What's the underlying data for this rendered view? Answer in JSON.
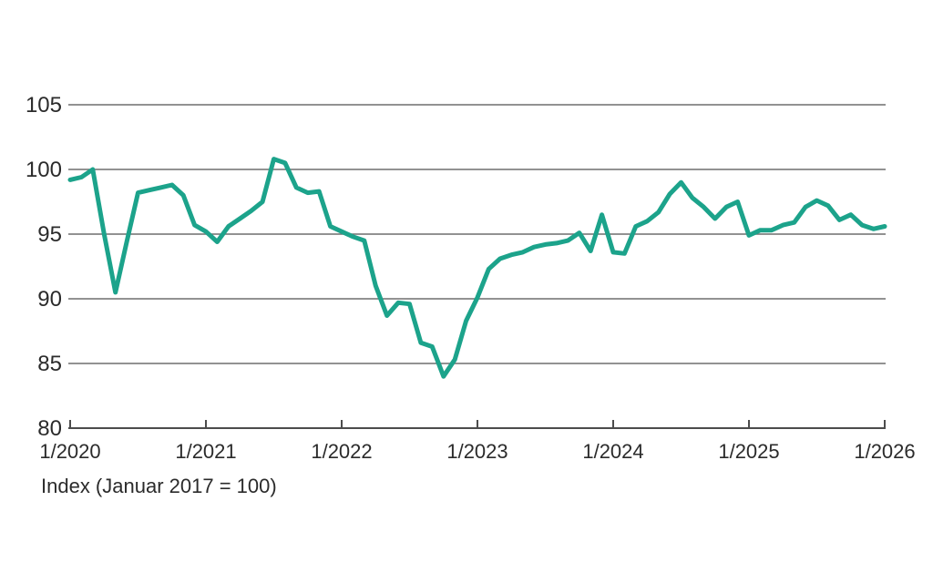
{
  "footnote": "Index (Januar 2017 = 100)",
  "chart_data": {
    "type": "line",
    "title": "",
    "xlabel": "",
    "ylabel": "Index (Januar 2017 = 100)",
    "x_start_label": "1/2020",
    "x_end_label": "1/2026",
    "x_tick_labels": [
      "1/2020",
      "1/2021",
      "1/2022",
      "1/2023",
      "1/2024",
      "1/2025",
      "1/2026"
    ],
    "y_tick_labels": [
      "105",
      "100",
      "95",
      "90",
      "85",
      "80"
    ],
    "y_ticks": [
      105,
      100,
      95,
      90,
      85,
      80
    ],
    "ylim": [
      80,
      105
    ],
    "grid": "horizontal",
    "legend": "none",
    "line_color": "#1CA38B",
    "grid_color": "#6f6f6f",
    "axis_color": "#4c4c4c",
    "text_color": "#2b2b2b",
    "frequency": "monthly",
    "series": [
      {
        "name": "Index",
        "start": "1/2020",
        "values": [
          99.2,
          99.4,
          100.0,
          95.0,
          90.5,
          94.4,
          98.2,
          98.4,
          98.6,
          98.8,
          98.0,
          95.7,
          95.2,
          94.4,
          95.6,
          96.2,
          96.8,
          97.5,
          100.8,
          100.5,
          98.6,
          98.2,
          98.3,
          95.6,
          95.2,
          94.8,
          94.5,
          91.0,
          88.7,
          89.7,
          89.6,
          86.6,
          86.3,
          84.0,
          85.3,
          88.3,
          90.1,
          92.3,
          93.1,
          93.4,
          93.6,
          94.0,
          94.2,
          94.3,
          94.5,
          95.1,
          93.7,
          96.5,
          93.6,
          93.5,
          95.6,
          96.0,
          96.7,
          98.1,
          99.0,
          97.8,
          97.1,
          96.2,
          97.1,
          97.5,
          94.9,
          95.3,
          95.3,
          95.7,
          95.9,
          97.1,
          97.6,
          97.2,
          96.1,
          96.5,
          95.7,
          95.4,
          95.6
        ]
      }
    ]
  },
  "layout_note": "line chart, y axis 80-105, monthly Jan 2020 - Jan 2026"
}
